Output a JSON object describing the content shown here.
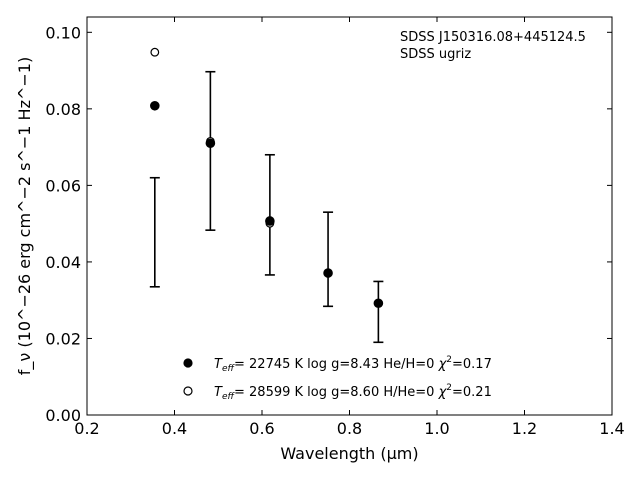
{
  "chart_data": {
    "type": "scatter",
    "title": "",
    "xlabel": "Wavelength (μm)",
    "ylabel": "f_ν (10^−26 erg cm^−2 s^−1 Hz^−1)",
    "xlim": [
      0.2,
      1.4
    ],
    "ylim": [
      0.0,
      0.104
    ],
    "xticks": [
      0.2,
      0.4,
      0.6,
      0.8,
      1.0,
      1.2,
      1.4
    ],
    "yticks": [
      0.0,
      0.02,
      0.04,
      0.06,
      0.08,
      0.1
    ],
    "xtick_labels": [
      "0.2",
      "0.4",
      "0.6",
      "0.8",
      "1.0",
      "1.2",
      "1.4"
    ],
    "ytick_labels": [
      "0.00",
      "0.02",
      "0.04",
      "0.06",
      "0.08",
      "0.10"
    ],
    "grid": false,
    "annotation": {
      "line1": "SDSS J150316.08+445124.5",
      "line2": "SDSS ugriz"
    },
    "observed": {
      "x": [
        0.355,
        0.482,
        0.618,
        0.751,
        0.866
      ],
      "y": [
        0.0477,
        0.069,
        0.0522,
        0.0407,
        0.0269
      ],
      "yerr_low": [
        0.0335,
        0.0483,
        0.0366,
        0.0284,
        0.019
      ],
      "yerr_high": [
        0.062,
        0.0897,
        0.068,
        0.053,
        0.0349
      ]
    },
    "series": [
      {
        "marker": "filled",
        "label_teff": "T",
        "label_teff_sub": "eff",
        "label_rest": "= 22745 K  log g=8.43  He/H=0  ",
        "label_chi": "χ",
        "label_chi_sup": "2",
        "label_chi_val": "=0.17",
        "x": [
          0.355,
          0.482,
          0.618,
          0.751,
          0.866
        ],
        "y": [
          0.0808,
          0.071,
          0.0507,
          0.0371,
          0.0292
        ]
      },
      {
        "marker": "open",
        "label_teff": "T",
        "label_teff_sub": "eff",
        "label_rest": "= 28599 K  log g=8.60  H/He=0  ",
        "label_chi": "χ",
        "label_chi_sup": "2",
        "label_chi_val": "=0.21",
        "x": [
          0.355,
          0.482,
          0.618,
          0.751,
          0.866
        ],
        "y": [
          0.0948,
          0.0715,
          0.0501,
          0.0371,
          0.0292
        ]
      }
    ]
  }
}
